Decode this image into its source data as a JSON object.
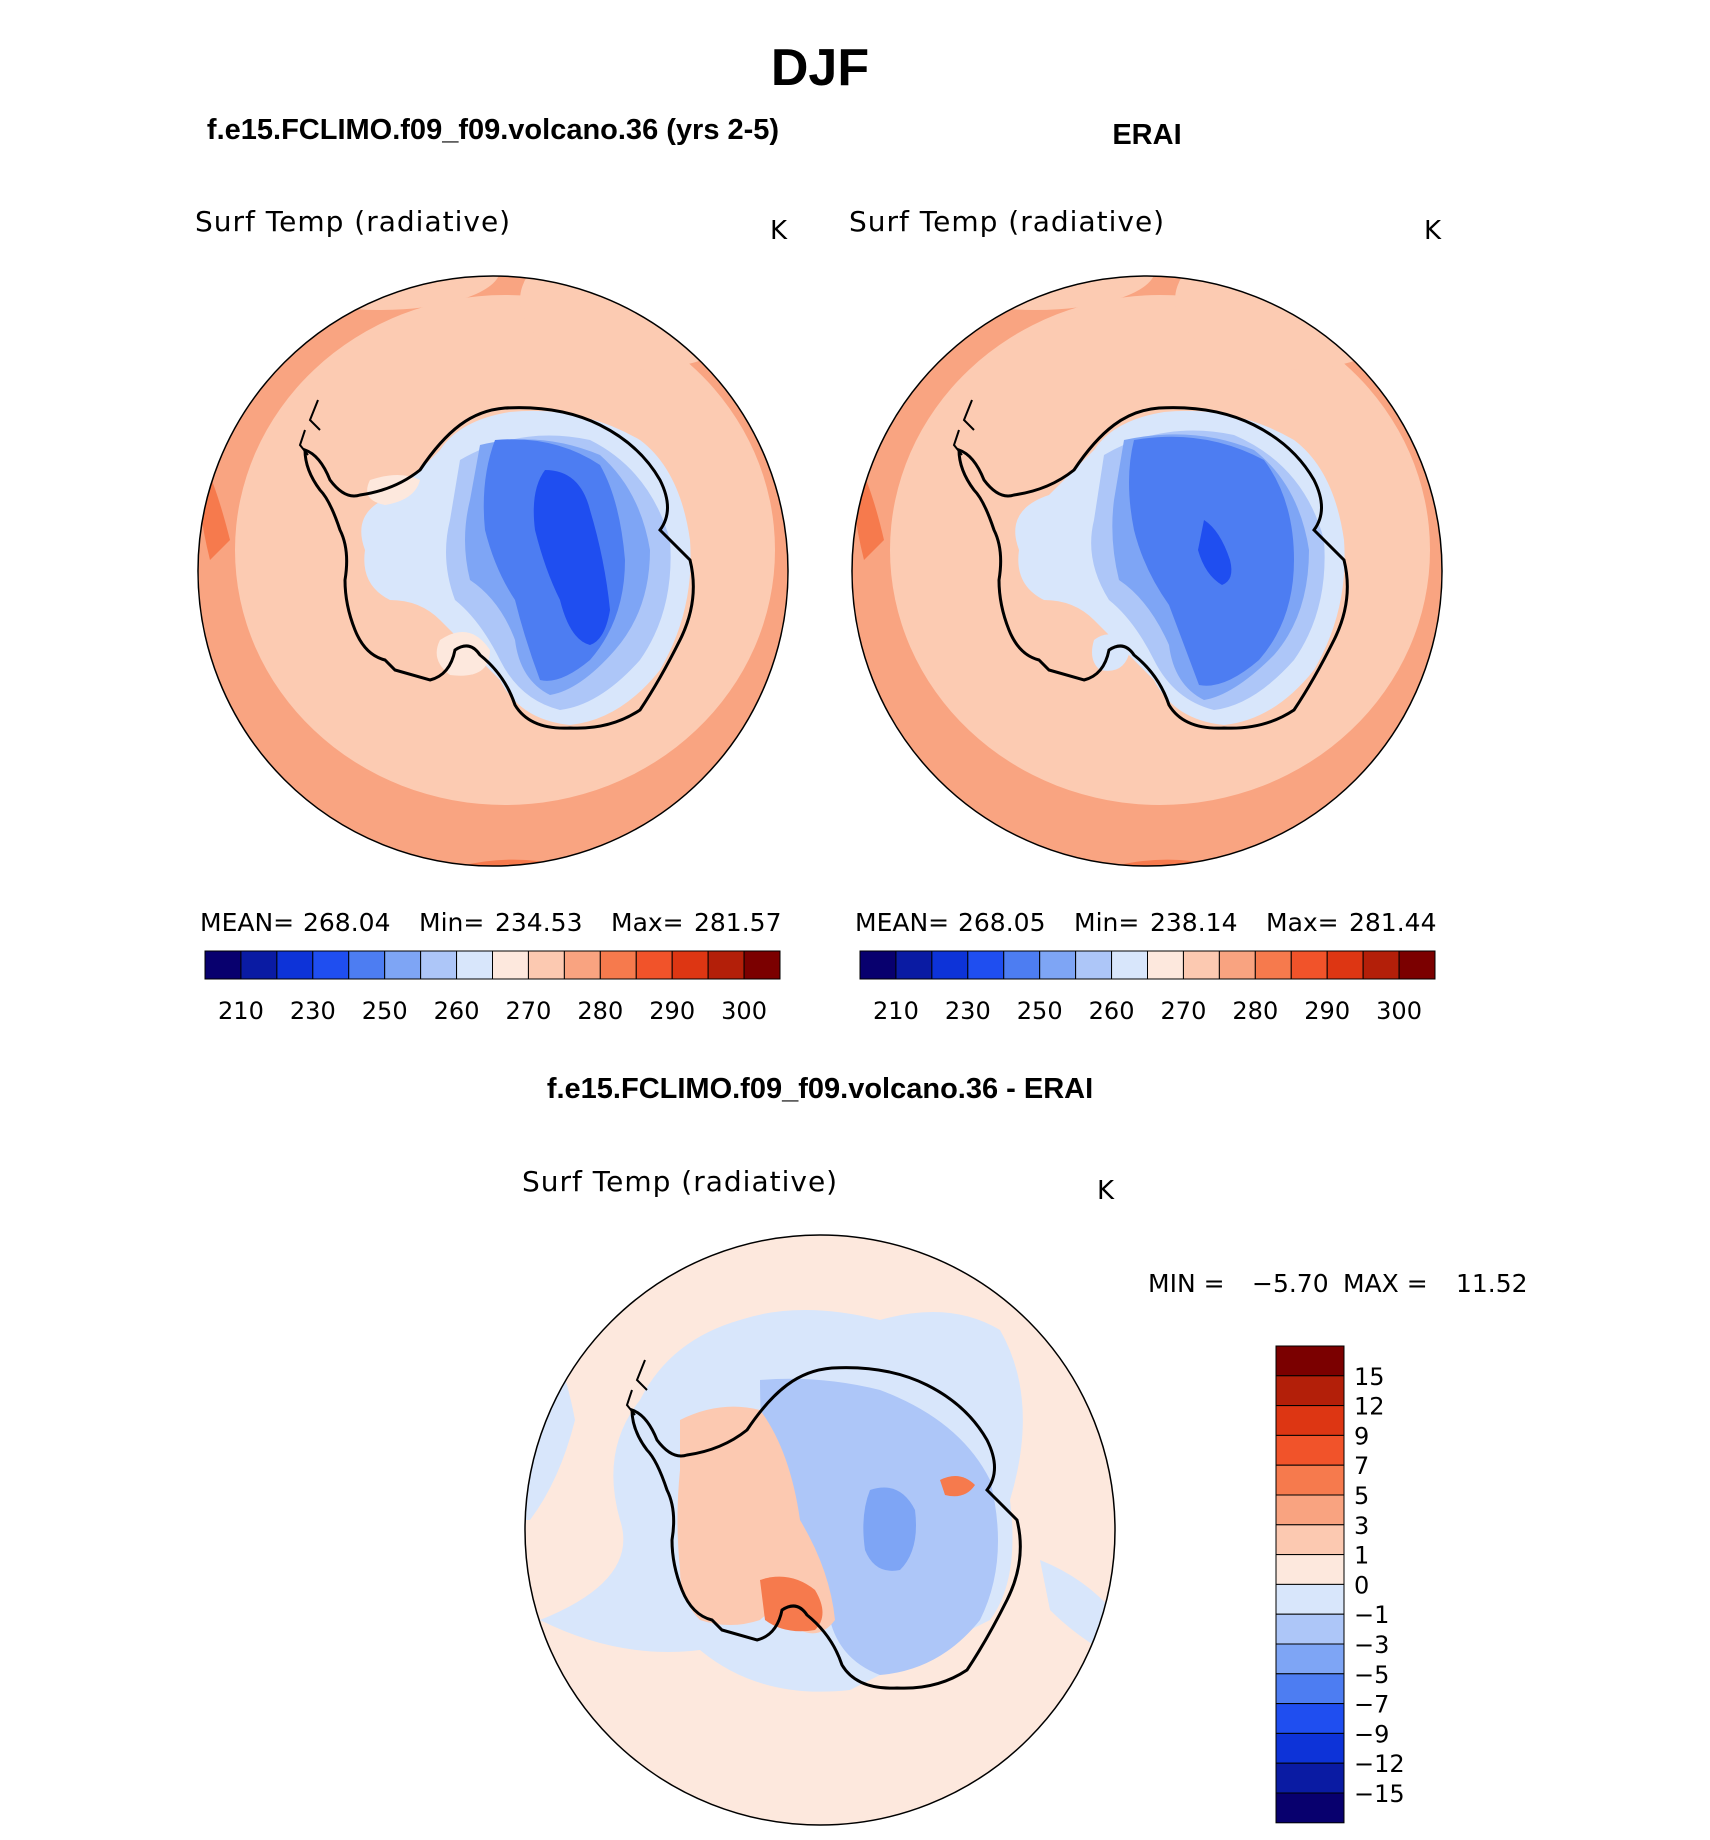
{
  "figure": {
    "season": "DJF"
  },
  "panels": {
    "model": {
      "title": "f.e15.FCLIMO.f09_f09.volcano.36 (yrs 2-5)",
      "variable": "Surf Temp (radiative)",
      "units": "K",
      "stats": {
        "mean_label": "MEAN=",
        "mean": "268.04",
        "min_label": "Min=",
        "min": "234.53",
        "max_label": "Max=",
        "max": "281.57"
      }
    },
    "obs": {
      "title": "ERAI",
      "variable": "Surf Temp (radiative)",
      "units": "K",
      "stats": {
        "mean_label": "MEAN=",
        "mean": "268.05",
        "min_label": "Min=",
        "min": "238.14",
        "max_label": "Max=",
        "max": "281.44"
      }
    },
    "diff": {
      "title": "f.e15.FCLIMO.f09_f09.volcano.36 - ERAI",
      "variable": "Surf Temp (radiative)",
      "units": "K",
      "stats": {
        "min_label": "MIN =",
        "min": "−5.70",
        "max_label": "MAX =",
        "max": "11.52"
      }
    }
  },
  "colorbars": {
    "abs": {
      "colors": [
        "#08006e",
        "#0a1ba3",
        "#0d33d8",
        "#1f4ef0",
        "#4d7df2",
        "#7ea5f5",
        "#adc6f8",
        "#d8e6fb",
        "#fde8dd",
        "#fcc9b1",
        "#f9a380",
        "#f67a4d",
        "#f1532a",
        "#dd3613",
        "#b31f09",
        "#7b0000"
      ],
      "tick_labels": [
        "210",
        "230",
        "250",
        "260",
        "270",
        "280",
        "290",
        "300"
      ]
    },
    "diff": {
      "colors": [
        "#7b0000",
        "#b31f09",
        "#dd3613",
        "#f1532a",
        "#f67a4d",
        "#f9a380",
        "#fcc9b1",
        "#fde8dd",
        "#d8e6fb",
        "#adc6f8",
        "#7ea5f5",
        "#4d7df2",
        "#1f4ef0",
        "#0d33d8",
        "#0a1ba3",
        "#08006e"
      ],
      "tick_labels": [
        "15",
        "12",
        "9",
        "7",
        "5",
        "3",
        "1",
        "0",
        "−1",
        "−3",
        "−5",
        "−7",
        "−9",
        "−12",
        "−15"
      ]
    }
  },
  "colors": {
    "ocean_warm": "#fccbb2",
    "ocean_warmer": "#f9a481",
    "ocean_hot": "#f67a4d",
    "diff_pos_small": "#fde8dd",
    "diff_neg_small": "#d8e6fb"
  }
}
